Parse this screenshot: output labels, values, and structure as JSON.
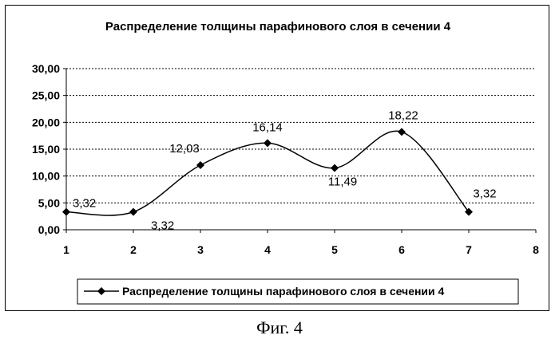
{
  "chart_data": {
    "type": "line",
    "title": "Распределение толщины парафинового слоя в сечении 4",
    "x": [
      1,
      2,
      3,
      4,
      5,
      6,
      7
    ],
    "series": [
      {
        "name": "Распределение толщины парафинового слоя в сечении 4",
        "values": [
          3.32,
          3.32,
          12.03,
          16.14,
          11.49,
          18.22,
          3.32
        ],
        "labels": [
          "3,32",
          "3,32",
          "12,03",
          "16,14",
          "11,49",
          "18,22",
          "3,32"
        ]
      }
    ],
    "xlim": [
      1,
      8
    ],
    "ylim": [
      0,
      30
    ],
    "x_ticks": [
      "1",
      "2",
      "3",
      "4",
      "5",
      "6",
      "7",
      "8"
    ],
    "y_ticks": [
      "0,00",
      "5,00",
      "10,00",
      "15,00",
      "20,00",
      "25,00",
      "30,00"
    ],
    "grid": "horizontal dotted",
    "legend_position": "bottom",
    "line_color": "#000000",
    "smooth": true
  },
  "caption": "Фиг. 4"
}
